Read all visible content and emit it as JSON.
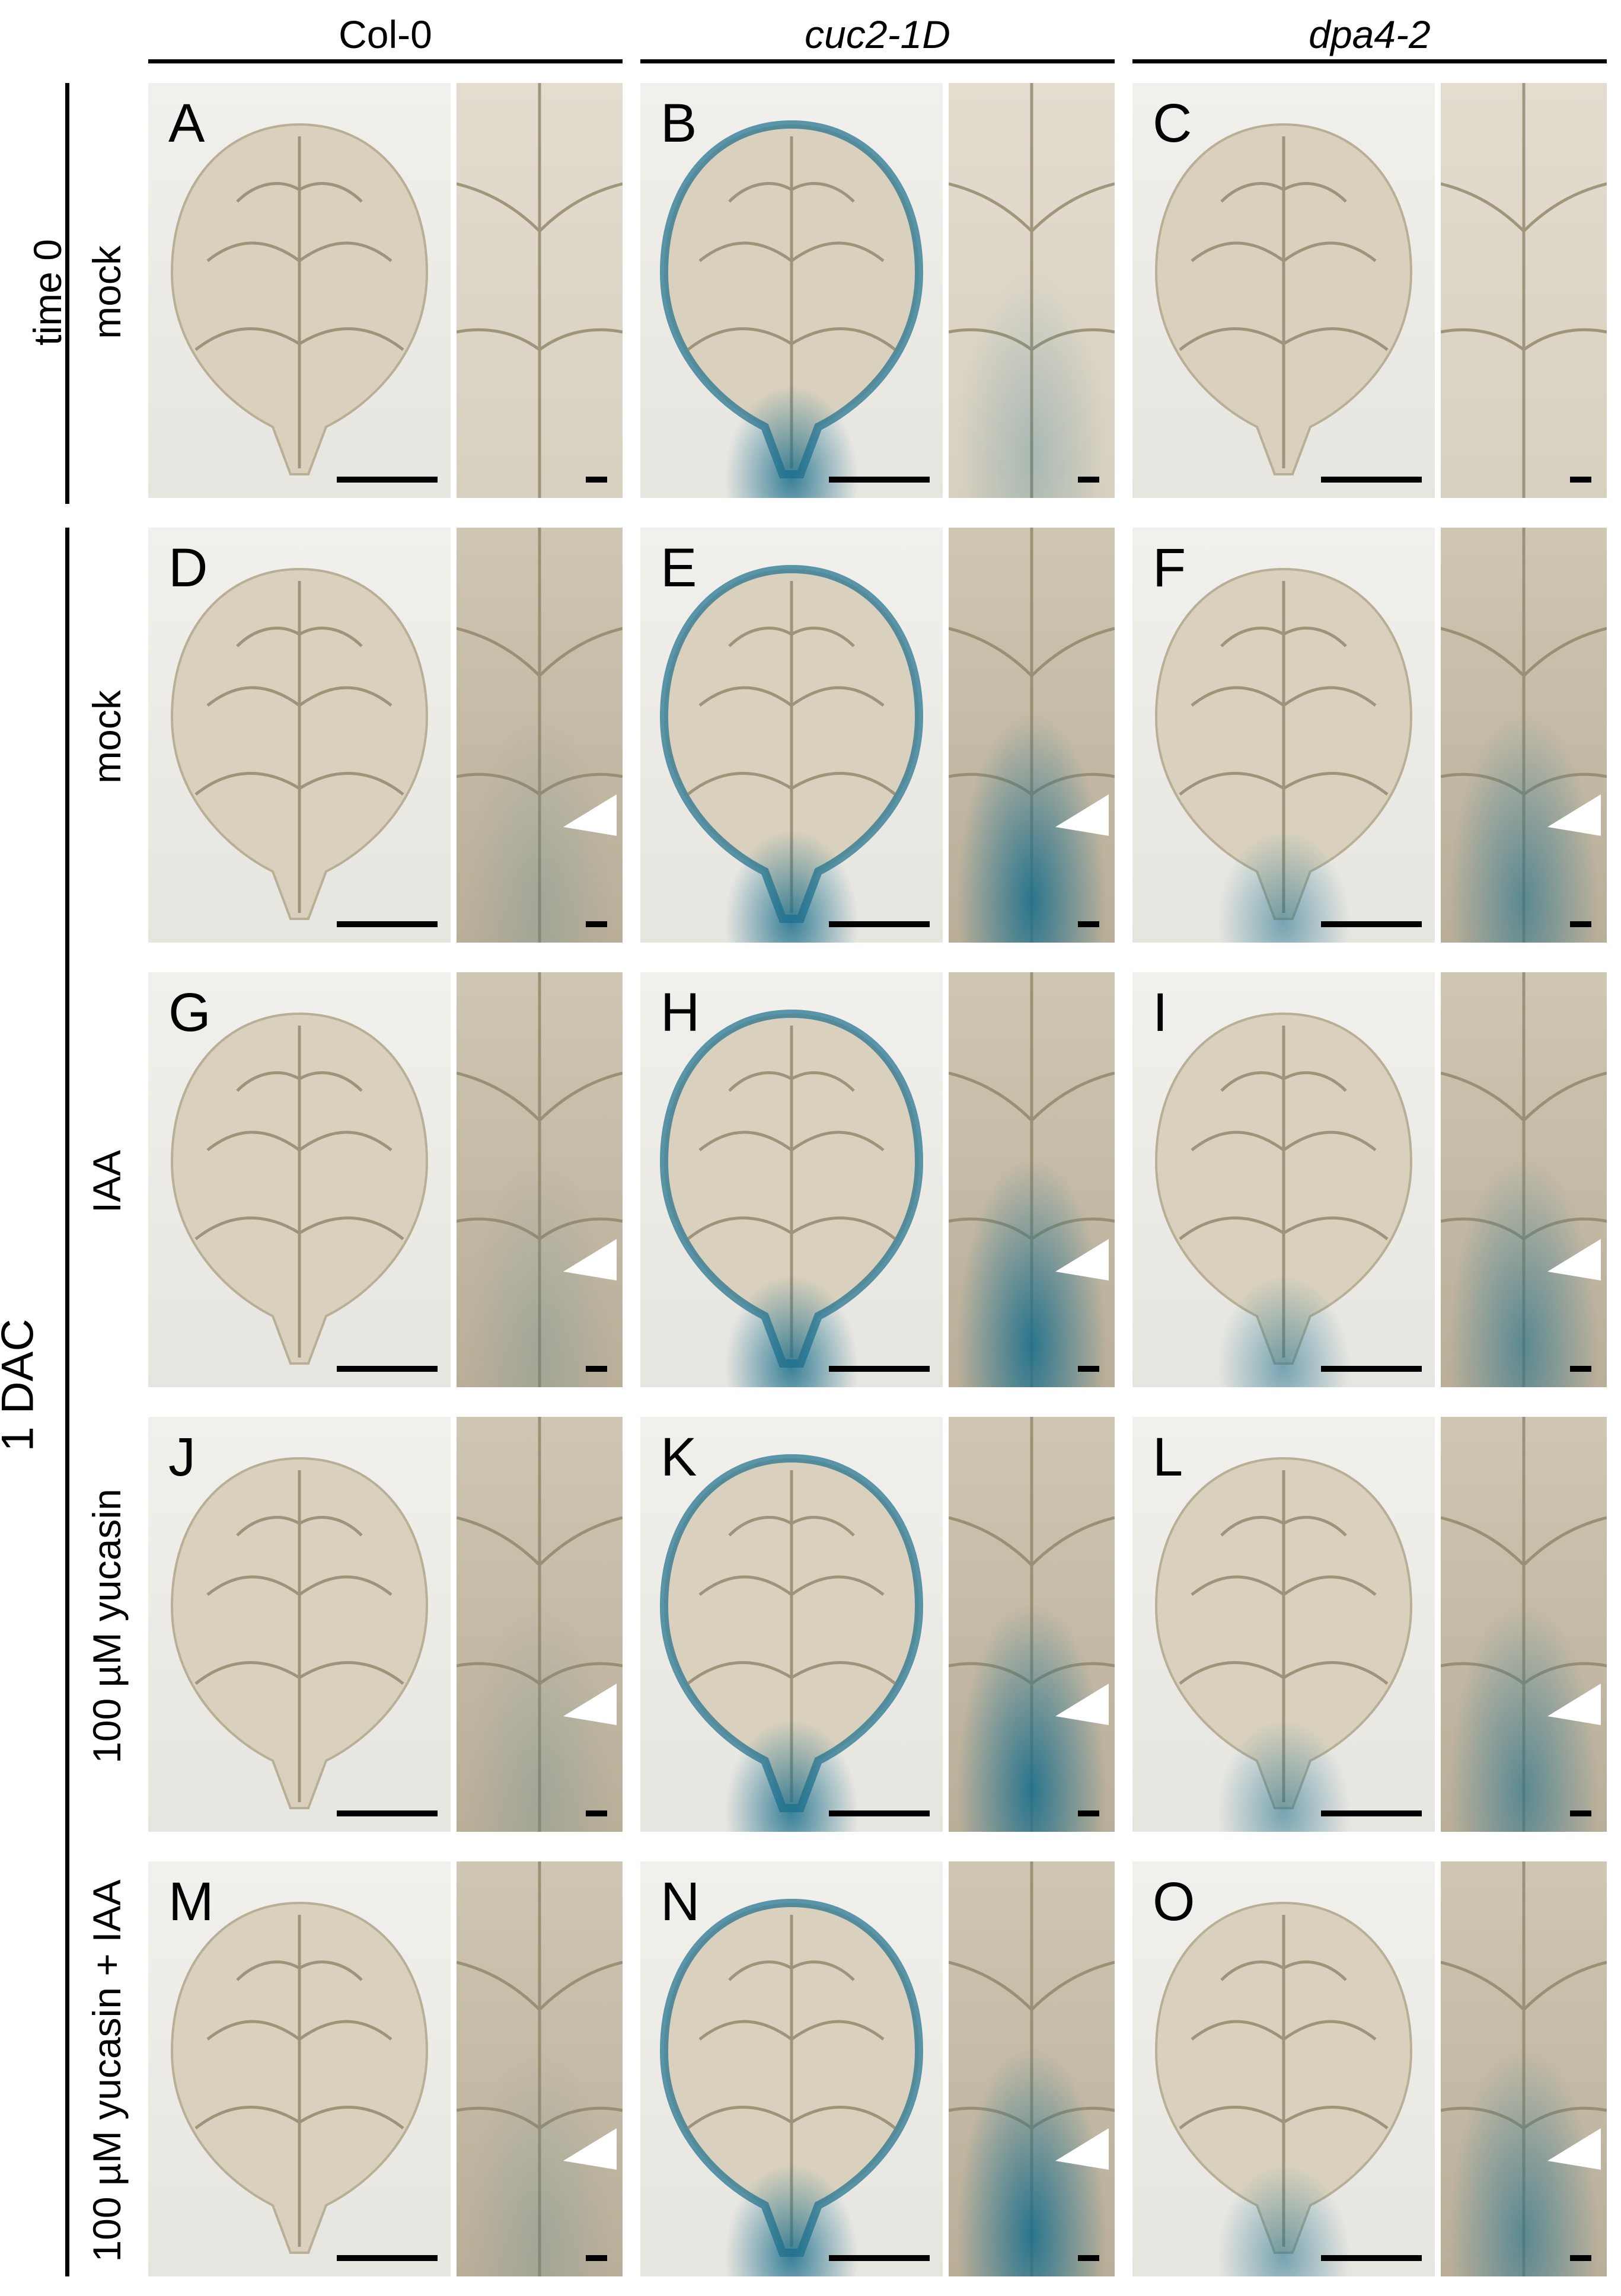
{
  "columns": [
    {
      "label": "Col-0",
      "italic": false
    },
    {
      "label": "cuc2-1D",
      "italic": true
    },
    {
      "label": "dpa4-2",
      "italic": true
    }
  ],
  "row_group_labels": {
    "time0": "time 0",
    "dac": "1 DAC"
  },
  "rows": [
    {
      "label": "mock",
      "group": "time0",
      "panels": [
        "A",
        "B",
        "C"
      ]
    },
    {
      "label": "mock",
      "group": "dac",
      "panels": [
        "D",
        "E",
        "F"
      ]
    },
    {
      "label": "IAA",
      "group": "dac",
      "panels": [
        "G",
        "H",
        "I"
      ]
    },
    {
      "label": "100 µM yucasin",
      "group": "dac",
      "panels": [
        "J",
        "K",
        "L"
      ]
    },
    {
      "label": "100 µM yucasin + IAA",
      "group": "dac",
      "panels": [
        "M",
        "N",
        "O"
      ]
    }
  ],
  "colors": {
    "stain": "#1a6e8c",
    "leaf": "#d9d1bd",
    "vein": "#8f8468"
  }
}
